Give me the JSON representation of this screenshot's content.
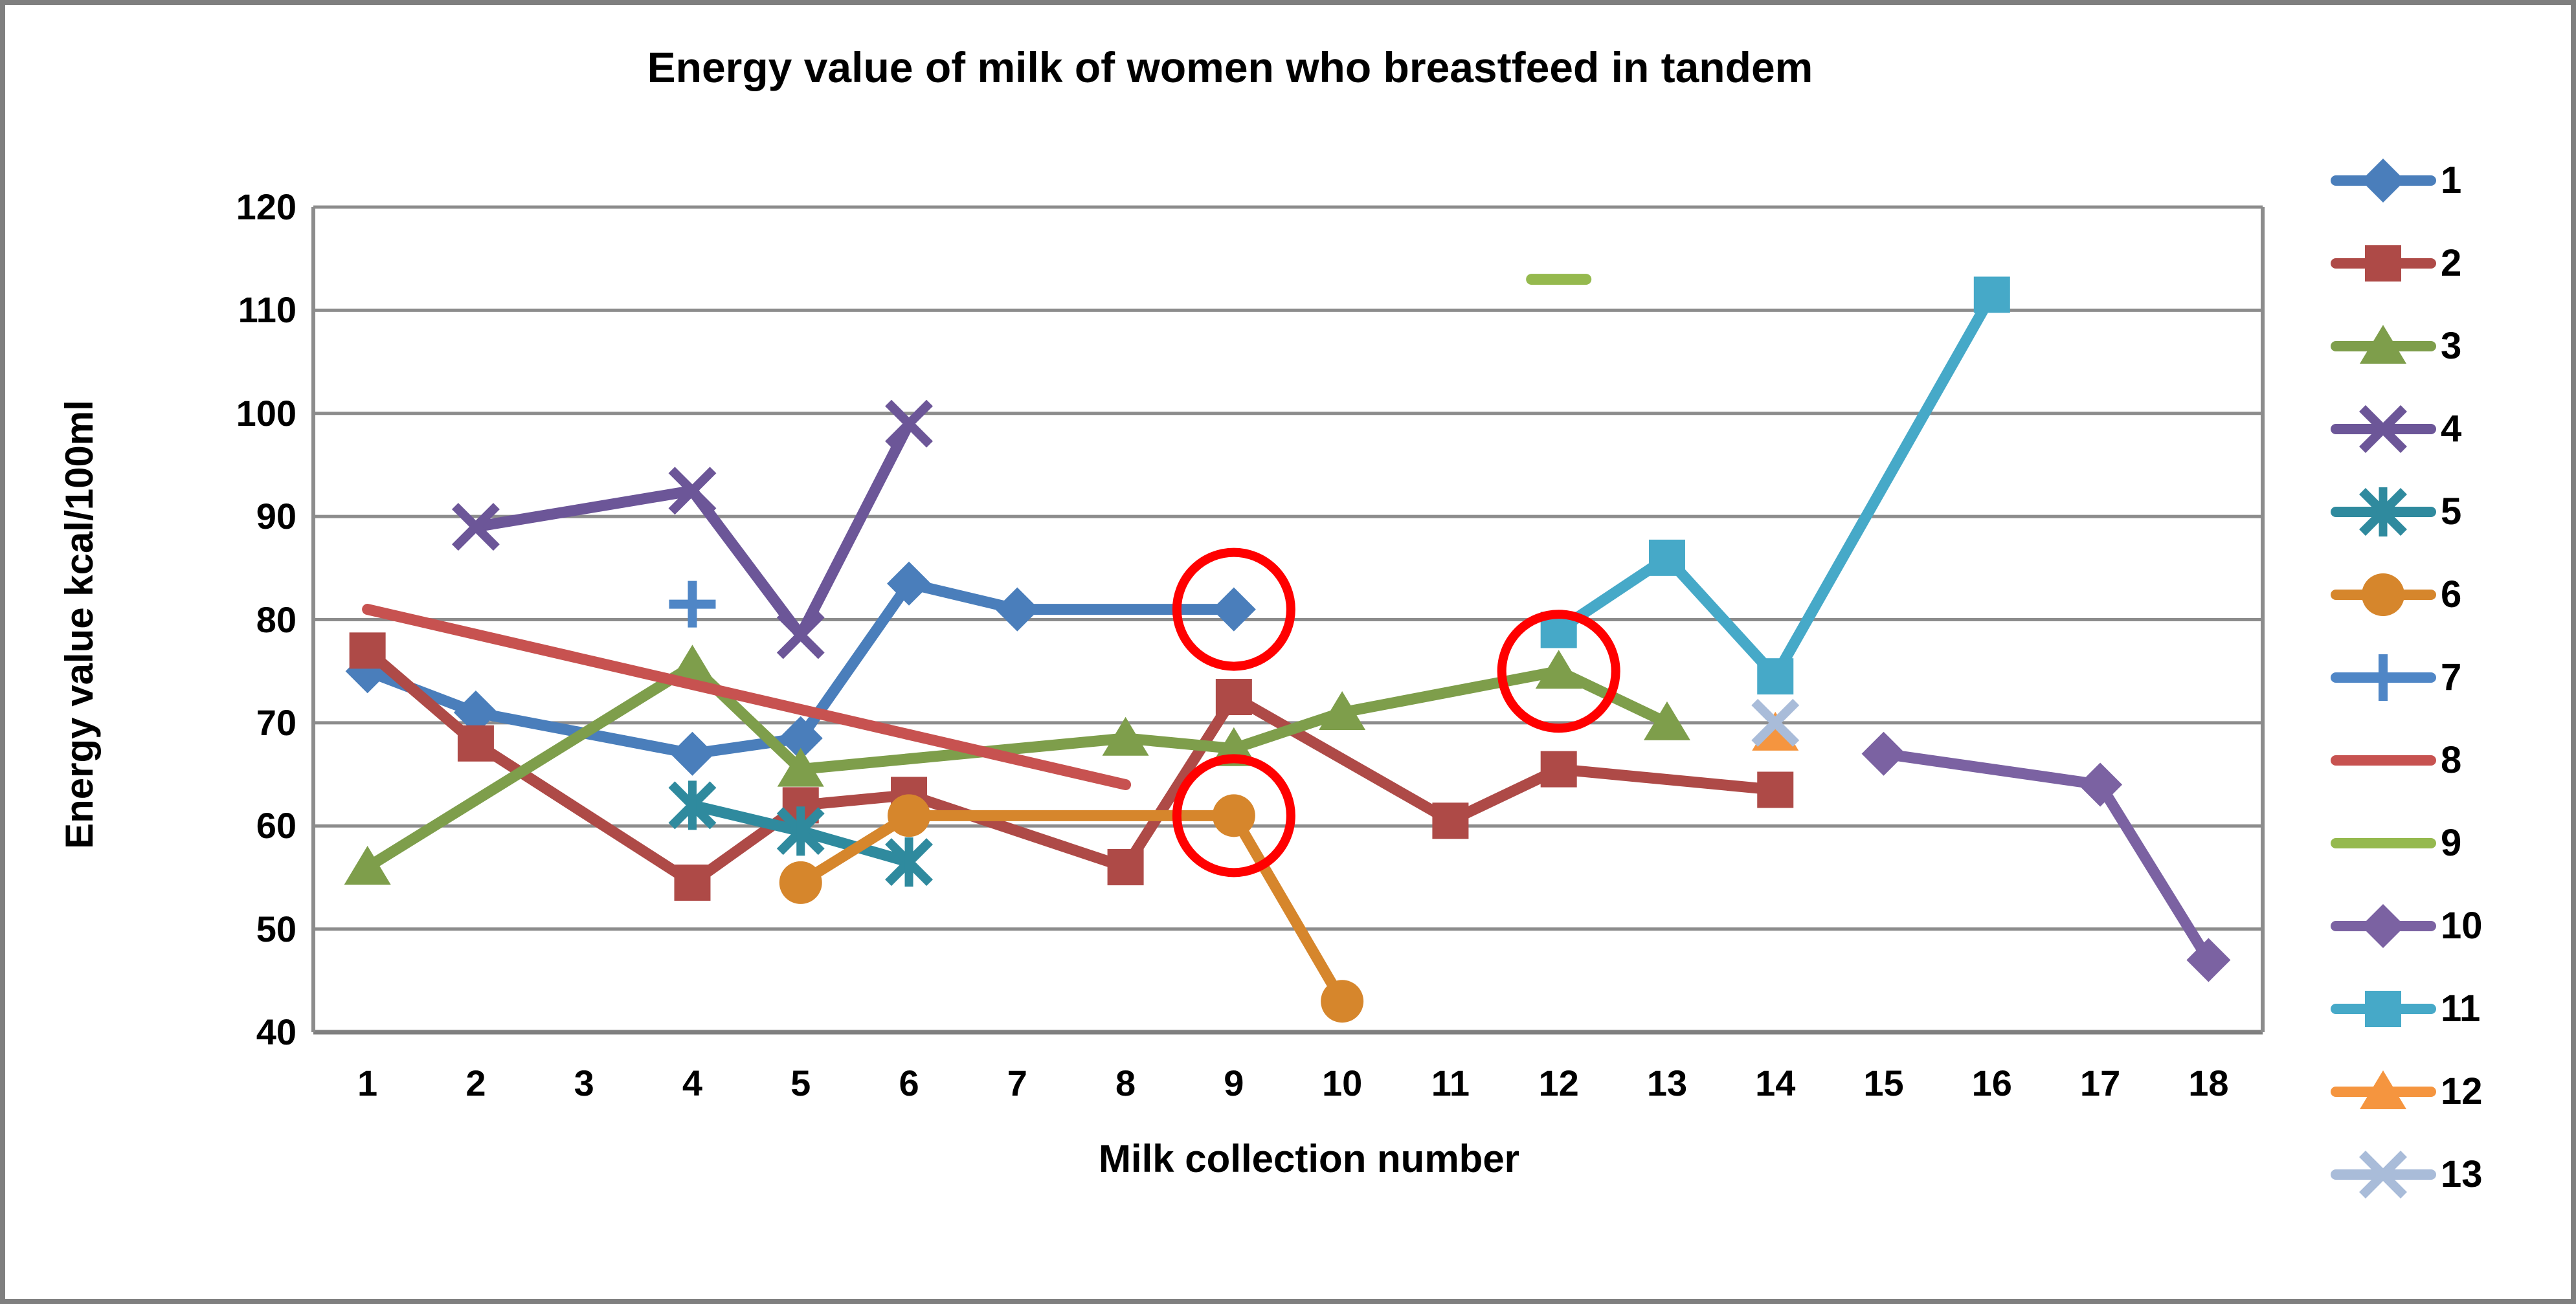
{
  "title": "Energy value of milk of women who breastfeed in tandem",
  "y_axis": {
    "label": "Energy value kcal/100ml",
    "ticks": [
      120,
      110,
      100,
      90,
      80,
      70,
      60,
      50,
      40
    ]
  },
  "x_axis": {
    "label": "Milk collection number",
    "categories": [
      "1",
      "2",
      "3",
      "4",
      "5",
      "6",
      "7",
      "8",
      "9",
      "10",
      "11",
      "12",
      "13",
      "14",
      "15",
      "16",
      "17",
      "18"
    ]
  },
  "legend": {
    "position": "right",
    "items": [
      "1",
      "2",
      "3",
      "4",
      "5",
      "6",
      "7",
      "8",
      "9",
      "10",
      "11",
      "12",
      "13"
    ]
  },
  "chart_data": {
    "type": "line",
    "title": "Energy value of milk of women who breastfeed in tandem",
    "xlabel": "Milk collection number",
    "ylabel": "Energy value kcal/100ml",
    "ylim": [
      40,
      120
    ],
    "ytick_step": 10,
    "grid": true,
    "legend_position": "right",
    "categories": [
      "1",
      "2",
      "3",
      "4",
      "5",
      "6",
      "7",
      "8",
      "9",
      "10",
      "11",
      "12",
      "13",
      "14",
      "15",
      "16",
      "17",
      "18"
    ],
    "gridline_color": "#8C8C8C",
    "axis_color": "#7F7F7F",
    "annotation_color": "#FF0000",
    "series": [
      {
        "name": "1",
        "color": "#4A7EBB",
        "marker": "diamond",
        "points": [
          [
            1,
            75
          ],
          [
            2,
            71
          ],
          [
            4,
            67
          ],
          [
            5,
            68.5
          ],
          [
            6,
            83.5
          ],
          [
            7,
            81
          ],
          [
            9,
            81
          ]
        ]
      },
      {
        "name": "2",
        "color": "#AE4A47",
        "marker": "square",
        "points": [
          [
            1,
            77
          ],
          [
            2,
            68
          ],
          [
            4,
            54.5
          ],
          [
            5,
            62
          ],
          [
            6,
            63
          ],
          [
            8,
            56
          ],
          [
            9,
            72.5
          ],
          [
            11,
            60.5
          ],
          [
            12,
            65.5
          ],
          [
            14,
            63.5
          ]
        ]
      },
      {
        "name": "3",
        "color": "#7E9E4B",
        "marker": "triangle",
        "points": [
          [
            1,
            56
          ],
          [
            4,
            75.5
          ],
          [
            5,
            65.5
          ],
          [
            8,
            68.5
          ],
          [
            9,
            67.5
          ],
          [
            10,
            71
          ],
          [
            12,
            75
          ],
          [
            13,
            70
          ]
        ]
      },
      {
        "name": "4",
        "color": "#6C5698",
        "marker": "x",
        "points": [
          [
            2,
            89
          ],
          [
            4,
            92.5
          ],
          [
            5,
            78.5
          ],
          [
            6,
            99
          ]
        ]
      },
      {
        "name": "5",
        "color": "#2F8A9E",
        "marker": "star",
        "points": [
          [
            4,
            62
          ],
          [
            5,
            59.5
          ],
          [
            6,
            56.5
          ]
        ]
      },
      {
        "name": "6",
        "color": "#D6862C",
        "marker": "circle",
        "points": [
          [
            5,
            54.5
          ],
          [
            6,
            61
          ],
          [
            9,
            61
          ],
          [
            10,
            43
          ]
        ]
      },
      {
        "name": "7",
        "color": "#4F86C6",
        "marker": "plus",
        "points": [
          [
            4,
            81.5
          ]
        ]
      },
      {
        "name": "8",
        "color": "#C75250",
        "marker": "none",
        "points": [
          [
            1,
            81
          ],
          [
            8,
            64
          ]
        ]
      },
      {
        "name": "9",
        "color": "#95B94E",
        "marker": "none",
        "points": [
          [
            12,
            113
          ]
        ]
      },
      {
        "name": "10",
        "color": "#7B62A2",
        "marker": "diamond",
        "points": [
          [
            15,
            67
          ],
          [
            17,
            64
          ],
          [
            18,
            47
          ]
        ]
      },
      {
        "name": "11",
        "color": "#46A9C8",
        "marker": "square",
        "points": [
          [
            12,
            79
          ],
          [
            13,
            86
          ],
          [
            14,
            74.5
          ],
          [
            16,
            111.5
          ]
        ]
      },
      {
        "name": "12",
        "color": "#F5953F",
        "marker": "triangle",
        "points": [
          [
            14,
            69
          ]
        ]
      },
      {
        "name": "13",
        "color": "#A9BCD9",
        "marker": "x",
        "points": [
          [
            14,
            70
          ]
        ]
      }
    ],
    "annotations": [
      {
        "type": "circle",
        "x": 9,
        "y": 81,
        "series": "1",
        "color": "#FF0000"
      },
      {
        "type": "circle",
        "x": 9,
        "y": 61,
        "series": "6",
        "color": "#FF0000"
      },
      {
        "type": "circle",
        "x": 12,
        "y": 75,
        "series": "3",
        "color": "#FF0000"
      }
    ]
  }
}
